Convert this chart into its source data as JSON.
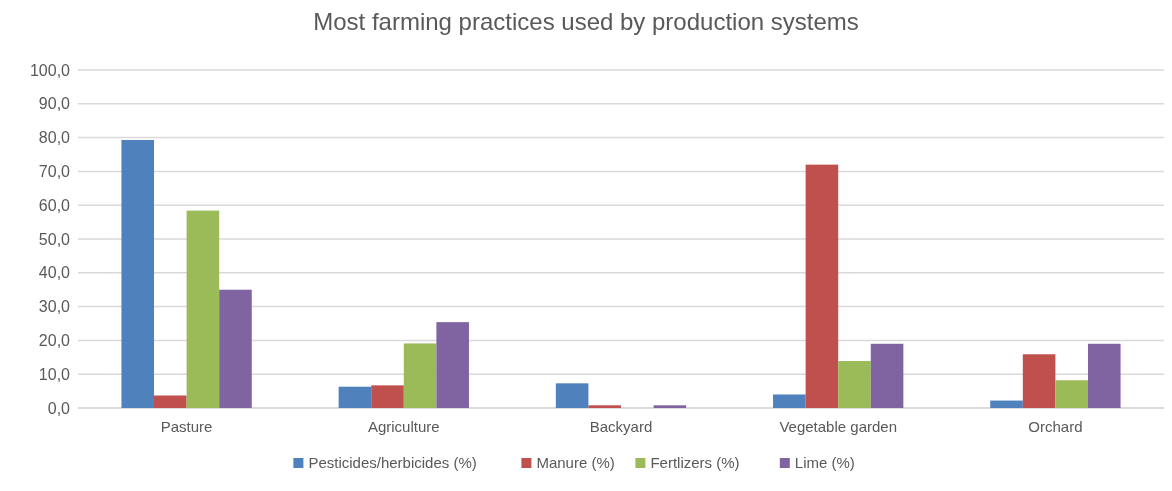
{
  "chart_data": {
    "type": "bar",
    "title": "Most farming practices used by production systems",
    "categories": [
      "Pasture",
      "Agriculture",
      "Backyard",
      "Vegetable garden",
      "Orchard"
    ],
    "series": [
      {
        "name": "Pesticides/herbicides (%)",
        "color": "#4f81bd",
        "values": [
          79.3,
          6.3,
          7.3,
          4.0,
          2.2
        ]
      },
      {
        "name": "Manure (%)",
        "color": "#c0504d",
        "values": [
          3.7,
          6.7,
          0.8,
          72.0,
          15.9
        ]
      },
      {
        "name": "Fertlizers (%)",
        "color": "#9bbb59",
        "values": [
          58.4,
          19.1,
          0,
          13.9,
          8.2
        ]
      },
      {
        "name": "Lime (%)",
        "color": "#8064a2",
        "values": [
          35.0,
          25.4,
          0.8,
          19.0,
          19.0
        ]
      }
    ],
    "ylim": [
      0,
      100
    ],
    "yticks": [
      {
        "value": 0,
        "label": "0,0"
      },
      {
        "value": 10,
        "label": "10,0"
      },
      {
        "value": 20,
        "label": "20,0"
      },
      {
        "value": 30,
        "label": "30,0"
      },
      {
        "value": 40,
        "label": "40,0"
      },
      {
        "value": 50,
        "label": "50,0"
      },
      {
        "value": 60,
        "label": "60,0"
      },
      {
        "value": 70,
        "label": "70,0"
      },
      {
        "value": 80,
        "label": "80,0"
      },
      {
        "value": 90,
        "label": "90,0"
      },
      {
        "value": 100,
        "label": "100,0"
      }
    ],
    "grid": "y",
    "legend": "bottom"
  }
}
